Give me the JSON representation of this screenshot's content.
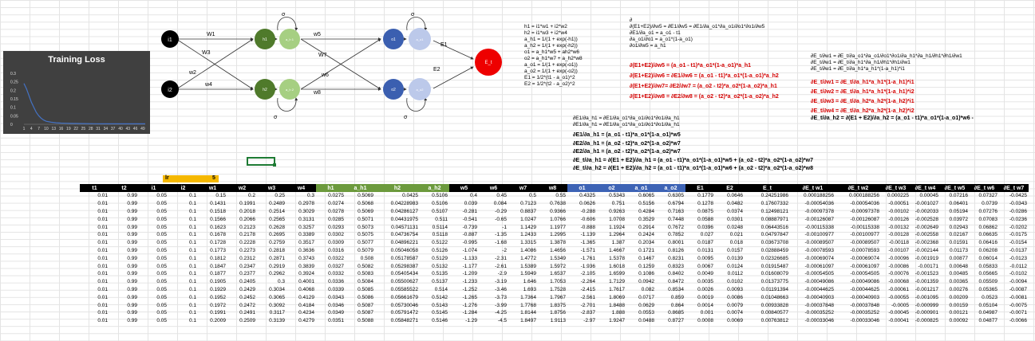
{
  "chart_data": {
    "type": "line",
    "title": "Training Loss",
    "yticks": [
      "0.3",
      "0.25",
      "0.2",
      "0.15",
      "0.1",
      "0.05",
      "0"
    ],
    "xticks": [
      "1",
      "4",
      "7",
      "10",
      "13",
      "16",
      "19",
      "22",
      "25",
      "28",
      "31",
      "34",
      "37",
      "40",
      "43",
      "46",
      "49"
    ],
    "ylim": [
      0,
      0.3
    ],
    "xlim": [
      1,
      50
    ],
    "x": [
      1,
      2,
      3,
      4,
      5,
      6,
      7,
      8,
      9,
      10,
      12,
      14,
      16,
      18,
      20,
      25,
      30,
      35,
      40,
      45,
      50
    ],
    "values": [
      0.24,
      0.21,
      0.17,
      0.13,
      0.1,
      0.07,
      0.05,
      0.035,
      0.025,
      0.018,
      0.012,
      0.009,
      0.007,
      0.006,
      0.005,
      0.004,
      0.0035,
      0.003,
      0.003,
      0.003,
      0.003
    ],
    "color": "#4472c4"
  },
  "diagram": {
    "i1": "i1",
    "i2": "i2",
    "h1": "h1",
    "h2": "h2",
    "ah1": "a_h 1",
    "ah2": "a_h 2",
    "o1": "o1",
    "o2": "o2",
    "ao1": "a_o1",
    "ao2": "a_o2",
    "et": "E_t",
    "w1": "W1",
    "w2": "w2",
    "w3": "W3",
    "w4": "w4",
    "w5": "w5",
    "w6": "w6",
    "w7": "W7",
    "w8": "w8",
    "e1": "E1",
    "e2": "E2",
    "sigma": "σ"
  },
  "equations": {
    "left": [
      "h1 = i1*w1 + i2*w2",
      "h2 = i1*w3 + i2*w4",
      "a_h1 = 1/(1 + exp(-h1))",
      "a_h2 = 1/(1 + exp(-h2))",
      "o1 = a_h1*w5 + ah2*w6",
      "o2 = a_h1*w7 + a_h2*w8",
      "a_o1 = 1/(1 + exp(-o1))",
      "a_o2 = 1/(1 + exp(-o2))",
      "E1 = 1/2*(t1 - a_o1)^2",
      "E2 = 1/2*(t2 - a_o2)^2"
    ],
    "mid_top": [
      "∂",
      "∂(E1+E2)/∂w5 = ∂E1/∂w5 = ∂E1/∂a_o1*∂a_o1/∂o1*∂o1/∂w5",
      "∂E1/∂a_o1 = a_o1 - t1",
      "∂a_o1/∂o1 = a_o1*(1-a_o1)",
      "∂o1/∂w5 = a_h1"
    ],
    "red": [
      "∂(E1+E2)/∂w5 = (a_o1 - t1)*a_o1*(1-a_o1)*a_h1",
      "∂(E1+E2)/∂w6 = ∂E1/∂w6 = (a_o1 - t1)*a_o1*(1-a_o1)*a_h2",
      "∂(E1+E2)/∂w7= ∂E2/∂w7 = (a_o2 - t2)*a_o2*(1-a_o2)*a_h1",
      "∂(E1+E2)/∂w8 = ∂E2/∂w8 = (a_o2 - t2)*a_o2*(1-a_o2)*a_h2"
    ],
    "mid_plain": [
      "∂E1/∂a_h1 = ∂E1/∂a_o1*∂a_o1/∂o1*∂o1/∂a_h1",
      "∂E1/∂a_h1 = ∂E1/∂a_o1*∂a_o1/∂o1*∂o1/∂a_h1"
    ],
    "bold": [
      "∂E1/∂a_h1 = (a_o1 - t1)*a_o1*(1-a_o1)*w5",
      "∂E2/∂a_h1 = (a_o2 - t2)*a_o2*(1-a_o2)*w7",
      "∂E2/∂a_h1 = (a_o2 - t2)*a_o2*(1-a_o2)*w7",
      "∂E_t/∂a_h1 = ∂(E1 + E2)/∂a_h1 = (a_o1 - t1)*a_o1*(1-a_o1)*w5 + (a_o2 - t2)*a_o2*(1-a_o2)*w7",
      "∂E_t/∂a_h2 = ∂(E1 + E2)/∂a_h2 = (a_o1 - t1)*a_o1*(1-a_o1)*w6 + (a_o2 - t2)*a_o2*(1-a_o2)*w8"
    ],
    "right_top": "∂E_t/∂a_h2 = ∂(E1 + E2)/∂a_h2 = (a_o1 - t1)*a_o1*(1-a_o1)*w6 -",
    "right": [
      "∂E_t/∂w1 = ∂E_t/∂a_o1*∂a_o1/∂o1*∂o1/∂a_h1*∂a_h1/∂h1*∂h1/∂w1",
      "∂E_t/∂w1 = ∂E_t/∂a_h1*∂a_h1/∂h1*∂h1/∂w1",
      "∂E_t/∂w1 = ∂E_t/∂a_h1*a_h1*(1-a_h1)*i1"
    ],
    "right_red": [
      "∂E_t/∂w1 = ∂E_t/∂a_h1*a_h1*(1-a_h1)*i1",
      "∂E_t/∂w2 = ∂E_t/∂a_h1*a_h1*(1-a_h1)*i2",
      "∂E_t/∂w3 = ∂E_t/∂a_h2*a_h2*(1-a_h2)*i1",
      "∂E_t/∂w4 = ∂E_t/∂a_h2*a_h2*(1-a_h2)*i2"
    ]
  },
  "lr": {
    "label": "lr",
    "value": "5"
  },
  "table": {
    "headers": [
      "t1",
      "t2",
      "i1",
      "i2",
      "w1",
      "w2",
      "w3",
      "w4",
      "h1",
      "a_h1",
      "h2",
      "a_h2",
      "w5",
      "w6",
      "w7",
      "w8",
      "o1",
      "o2",
      "a_o1",
      "a_o2",
      "E1",
      "E2",
      "E_t",
      "∂E_t w1",
      "∂E_t w2",
      "∂E_t w3",
      "∂E_t w4",
      "∂E_t w5",
      "∂E_t w6",
      "∂E_t w7"
    ],
    "header_colors": [
      "k",
      "k",
      "k",
      "k",
      "k",
      "k",
      "k",
      "k",
      "g",
      "g",
      "g",
      "g",
      "k",
      "k",
      "k",
      "k",
      "b",
      "b",
      "b",
      "b",
      "k",
      "k",
      "k",
      "k",
      "k",
      "k",
      "k",
      "k",
      "k",
      "k"
    ],
    "rows": [
      [
        "0.01",
        "0.99",
        "0.05",
        "0.1",
        "0.15",
        "0.2",
        "0.25",
        "0.3",
        "0.0275",
        "0.5069",
        "0.0425",
        "0.5106",
        "0.4",
        "0.45",
        "0.5",
        "0.55",
        "0.4325",
        "0.5343",
        "0.6065",
        "0.6305",
        "0.1779",
        "0.0646",
        "0.24251986",
        "0.000188256",
        "0.000188256",
        "0.000225",
        "0.00045",
        "0.07216",
        "0.07327",
        "-0.0425"
      ],
      [
        "0.01",
        "0.99",
        "0.05",
        "0.1",
        "0.1431",
        "0.1991",
        "0.2489",
        "0.2978",
        "0.0274",
        "0.5068",
        "0.04228983",
        "0.5106",
        "0.039",
        "0.084",
        "0.7123",
        "0.7638",
        "0.0626",
        "0.751",
        "0.5156",
        "0.6794",
        "0.1278",
        "0.0482",
        "0.17607332",
        "-0.00054036",
        "-0.00054036",
        "-0.00051",
        "-0.001027",
        "0.06401",
        "0.0739",
        "-0.0343"
      ],
      [
        "0.01",
        "0.99",
        "0.05",
        "0.1",
        "0.1518",
        "0.2018",
        "0.2514",
        "0.3029",
        "0.0278",
        "0.5069",
        "0.04286127",
        "0.5107",
        "-0.281",
        "-0.29",
        "0.8837",
        "0.9366",
        "-0.288",
        "0.9263",
        "0.4284",
        "0.7163",
        "0.0875",
        "0.0374",
        "0.12498121",
        "-0.00097378",
        "-0.00097378",
        "-0.00102",
        "-0.002033",
        "0.05194",
        "0.07276",
        "-0.0286"
      ],
      [
        "0.01",
        "0.99",
        "0.05",
        "0.1",
        "0.1566",
        "0.2066",
        "0.2565",
        "0.3131",
        "0.0285",
        "0.5071",
        "0.04431975",
        "0.511",
        "-0.541",
        "-0.65",
        "1.0247",
        "1.0766",
        "-0.606",
        "1.0708",
        "0.3529",
        "0.7448",
        "0.0588",
        "0.0301",
        "0.08887971",
        "-0.00126087",
        "-0.00126087",
        "-0.00126",
        "-0.002528",
        "0.03972",
        "0.07083",
        "-0.0236"
      ],
      [
        "0.01",
        "0.99",
        "0.05",
        "0.1",
        "0.1623",
        "0.2123",
        "0.2628",
        "0.3257",
        "0.0293",
        "0.5073",
        "0.04571131",
        "0.5114",
        "-0.739",
        "-1",
        "1.1429",
        "1.1977",
        "-0.888",
        "1.1924",
        "0.2914",
        "0.7672",
        "0.0396",
        "0.0248",
        "0.06443516",
        "-0.00115338",
        "-0.00115338",
        "-0.00132",
        "-0.002649",
        "0.02943",
        "0.06862",
        "-0.0202"
      ],
      [
        "0.01",
        "0.99",
        "0.05",
        "0.1",
        "0.1678",
        "0.2178",
        "0.2695",
        "0.3389",
        "0.0302",
        "0.5075",
        "0.04736754",
        "0.5118",
        "-0.887",
        "-1.35",
        "1.2433",
        "1.2995",
        "-1.139",
        "1.2964",
        "0.2424",
        "0.7852",
        "0.027",
        "0.021",
        "0.04797847",
        "-0.00100977",
        "-0.00100977",
        "-0.00128",
        "-0.002558",
        "0.02167",
        "0.06635",
        "-0.0175"
      ],
      [
        "0.01",
        "0.99",
        "0.05",
        "0.1",
        "0.1728",
        "0.2228",
        "0.2759",
        "0.3517",
        "0.0309",
        "0.5077",
        "0.04896221",
        "0.5122",
        "-0.995",
        "-1.68",
        "1.3315",
        "1.3878",
        "-1.365",
        "1.387",
        "0.2034",
        "0.8001",
        "0.0187",
        "0.018",
        "0.03673708",
        "-0.00089507",
        "-0.00089507",
        "-0.00118",
        "-0.002368",
        "0.01591",
        "0.06416",
        "-0.0154"
      ],
      [
        "0.01",
        "0.99",
        "0.05",
        "0.1",
        "0.1773",
        "0.2273",
        "0.2818",
        "0.3636",
        "0.0316",
        "0.5079",
        "0.05046058",
        "0.5126",
        "-1.074",
        "-2",
        "1.4086",
        "1.4656",
        "-1.571",
        "1.4667",
        "0.1721",
        "0.8126",
        "0.0131",
        "0.0157",
        "0.02888459",
        "-0.00078593",
        "-0.00078593",
        "-0.00107",
        "-0.002144",
        "0.01173",
        "0.06208",
        "-0.0137"
      ],
      [
        "0.01",
        "0.99",
        "0.05",
        "0.1",
        "0.1812",
        "0.2312",
        "0.2871",
        "0.3743",
        "0.0322",
        "0.508",
        "0.05178587",
        "0.5129",
        "-1.133",
        "-2.31",
        "1.4772",
        "1.5349",
        "-1.761",
        "1.5378",
        "0.1467",
        "0.8231",
        "0.0095",
        "0.0139",
        "0.02326685",
        "-0.00069074",
        "-0.00069074",
        "-0.00096",
        "-0.001919",
        "0.00877",
        "0.06014",
        "-0.0123"
      ],
      [
        "0.01",
        "0.99",
        "0.05",
        "0.1",
        "0.1847",
        "0.2347",
        "0.2919",
        "0.3839",
        "0.0327",
        "0.5082",
        "0.05298387",
        "0.5132",
        "-1.177",
        "-2.61",
        "1.5389",
        "1.5972",
        "-1.936",
        "1.6018",
        "0.1259",
        "0.8323",
        "0.0067",
        "0.0124",
        "0.01915487",
        "-0.00061097",
        "-0.00061097",
        "-0.00086",
        "-0.00171",
        "0.00648",
        "0.05833",
        "-0.0112"
      ],
      [
        "0.01",
        "0.99",
        "0.05",
        "0.1",
        "0.1877",
        "0.2377",
        "0.2962",
        "0.3924",
        "0.0332",
        "0.5083",
        "0.05405434",
        "0.5135",
        "-1.209",
        "-2.9",
        "1.5949",
        "1.6537",
        "-2.105",
        "1.6599",
        "0.1086",
        "0.8402",
        "0.0049",
        "0.0112",
        "0.01608079",
        "-0.00054505",
        "-0.00054505",
        "-0.00076",
        "-0.001523",
        "0.00485",
        "0.05665",
        "-0.0102"
      ],
      [
        "0.01",
        "0.99",
        "0.05",
        "0.1",
        "0.1905",
        "0.2405",
        "0.3",
        "0.4001",
        "0.0336",
        "0.5084",
        "0.05500627",
        "0.5137",
        "-1.233",
        "-3.19",
        "1.646",
        "1.7053",
        "-2.264",
        "1.7129",
        "0.0942",
        "0.8472",
        "0.0035",
        "0.0102",
        "0.01373775",
        "-0.00049086",
        "-0.00049086",
        "-0.00068",
        "-0.001359",
        "0.00365",
        "0.05509",
        "-0.0094"
      ],
      [
        "0.01",
        "0.99",
        "0.05",
        "0.1",
        "0.1929",
        "0.2429",
        "0.3034",
        "0.4068",
        "0.0339",
        "0.5085",
        "0.05585522",
        "0.514",
        "-1.252",
        "-3.46",
        "1.693",
        "1.7528",
        "-2.415",
        "1.7617",
        "0.082",
        "0.8534",
        "0.0026",
        "0.0093",
        "0.01191394",
        "-0.00044625",
        "-0.00044625",
        "-0.00061",
        "-0.001217",
        "0.00276",
        "0.05365",
        "-0.0087"
      ],
      [
        "0.01",
        "0.99",
        "0.05",
        "0.1",
        "0.1952",
        "0.2452",
        "0.3065",
        "0.4129",
        "0.0343",
        "0.5086",
        "0.05661679",
        "0.5142",
        "-1.265",
        "-3.73",
        "1.7364",
        "1.7967",
        "-2.561",
        "1.8069",
        "0.0717",
        "0.859",
        "0.0019",
        "0.0086",
        "0.01048663",
        "-0.00040903",
        "-0.00040903",
        "-0.00055",
        "-0.001095",
        "0.00209",
        "0.0523",
        "-0.0081"
      ],
      [
        "0.01",
        "0.99",
        "0.05",
        "0.1",
        "0.1972",
        "0.2472",
        "0.3092",
        "0.4184",
        "0.0346",
        "0.5087",
        "0.05730046",
        "0.5143",
        "-1.276",
        "-3.99",
        "1.7768",
        "1.8375",
        "-2.701",
        "1.8488",
        "0.0629",
        "0.864",
        "0.0014",
        "0.0079",
        "0.00933828",
        "-0.00037848",
        "-0.00037848",
        "-0.0005",
        "-0.000999",
        "0.00159",
        "0.05104",
        "-0.0075"
      ],
      [
        "0.01",
        "0.99",
        "0.05",
        "0.1",
        "0.1991",
        "0.2491",
        "0.3117",
        "0.4234",
        "0.0349",
        "0.5087",
        "0.05791472",
        "0.5145",
        "-1.284",
        "-4.25",
        "1.8144",
        "1.8756",
        "-2.837",
        "1.888",
        "0.0553",
        "0.8685",
        "0.001",
        "0.0074",
        "0.00840577",
        "-0.00035252",
        "-0.00035252",
        "-0.00045",
        "-0.000901",
        "0.00121",
        "0.04987",
        "-0.0071"
      ],
      [
        "0.01",
        "0.99",
        "0.05",
        "0.1",
        "0.2009",
        "0.2509",
        "0.3139",
        "0.4279",
        "0.0351",
        "0.5088",
        "0.05848271",
        "0.5146",
        "-1.29",
        "-4.5",
        "1.8497",
        "1.9113",
        "-2.97",
        "1.9247",
        "0.0488",
        "0.8727",
        "0.0008",
        "0.0069",
        "0.00763812",
        "-0.00033046",
        "-0.00033046",
        "-0.00041",
        "-0.000825",
        "0.00092",
        "0.04877",
        "-0.0066"
      ]
    ]
  }
}
